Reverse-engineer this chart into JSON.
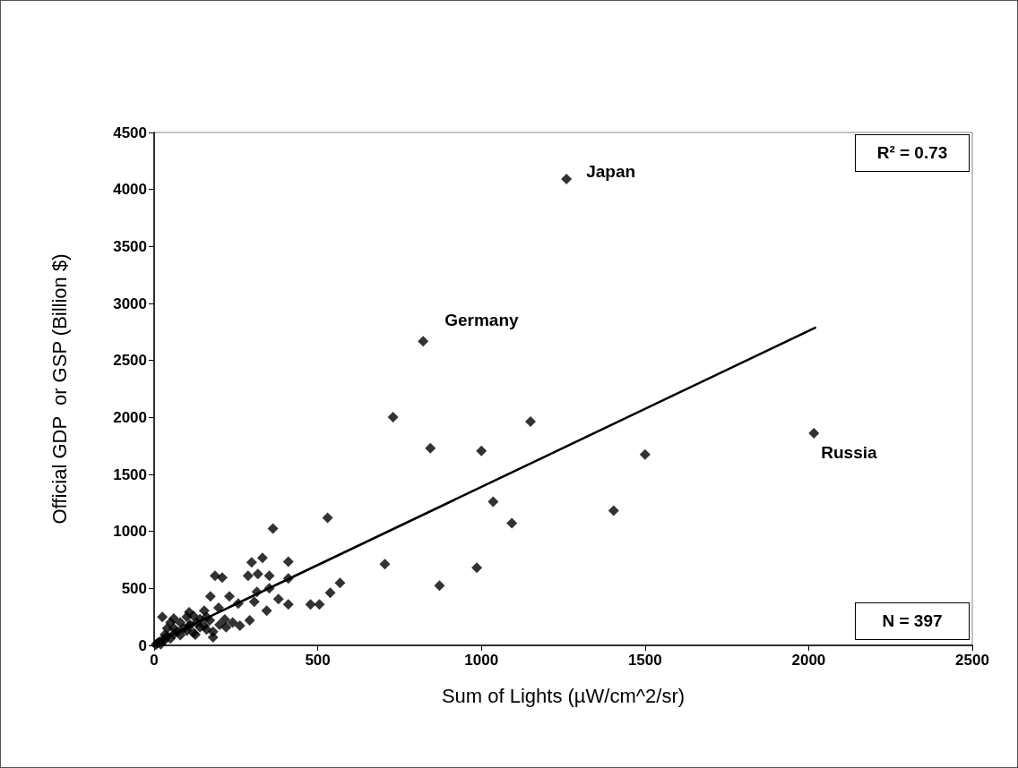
{
  "chart_data": {
    "type": "scatter",
    "xlabel": "Sum of Lights (µW/cm^2/sr)",
    "ylabel": "Official GDP  or GSP (Billion $)",
    "xlim": [
      0,
      2500
    ],
    "xticks": [
      0,
      500,
      1000,
      1500,
      2000,
      2500
    ],
    "ylim": [
      0,
      4500
    ],
    "yticks": [
      0,
      500,
      1000,
      1500,
      2000,
      2500,
      3000,
      3500,
      4000,
      4500
    ],
    "grid": false,
    "marker": "diamond",
    "series": [
      {
        "color": "#000000",
        "x": [
          1260,
          822,
          2016,
          730,
          1150,
          844,
          1000,
          1036,
          1093,
          530,
          363,
          705,
          986,
          872,
          1500,
          1404,
          410,
          410,
          331,
          298,
          186,
          208,
          287,
          317,
          352,
          568,
          538,
          478,
          505,
          410,
          380,
          230,
          172,
          314,
          352,
          306,
          344,
          292,
          257,
          197,
          216,
          262,
          153,
          25,
          60,
          107,
          153,
          107,
          60,
          33,
          180,
          126,
          5,
          10,
          15,
          20,
          25,
          30,
          40,
          50,
          60,
          70,
          80,
          90,
          100,
          110,
          120,
          130,
          140,
          160,
          170,
          180,
          200,
          220,
          240,
          40,
          50,
          80,
          100,
          120,
          140,
          160
        ],
        "values": [
          4092,
          2668,
          1862,
          2003,
          1964,
          1729,
          1706,
          1260,
          1072,
          1119,
          1025,
          712,
          681,
          524,
          1674,
          1182,
          735,
          587,
          767,
          728,
          610,
          595,
          610,
          626,
          610,
          548,
          462,
          360,
          360,
          360,
          407,
          430,
          430,
          469,
          501,
          383,
          305,
          219,
          368,
          329,
          227,
          172,
          305,
          250,
          235,
          290,
          172,
          172,
          149,
          94,
          70,
          94,
          5,
          20,
          30,
          10,
          50,
          40,
          80,
          60,
          100,
          120,
          90,
          150,
          130,
          180,
          110,
          200,
          160,
          140,
          220,
          120,
          180,
          160,
          200,
          150,
          200,
          200,
          250,
          260,
          230,
          250
        ]
      },
      {
        "type": "line",
        "color": "#000000",
        "marker": "none",
        "line_style": "solid",
        "x": [
          10,
          2020
        ],
        "values": [
          34,
          2787
        ]
      }
    ],
    "annotations": [
      {
        "text": "Japan",
        "x": 1260,
        "y": 4092
      },
      {
        "text": "Germany",
        "x": 822,
        "y": 2668
      },
      {
        "text": "Russia",
        "x": 2016,
        "y": 1862
      },
      "R² = 0.73",
      "N = 397"
    ]
  }
}
